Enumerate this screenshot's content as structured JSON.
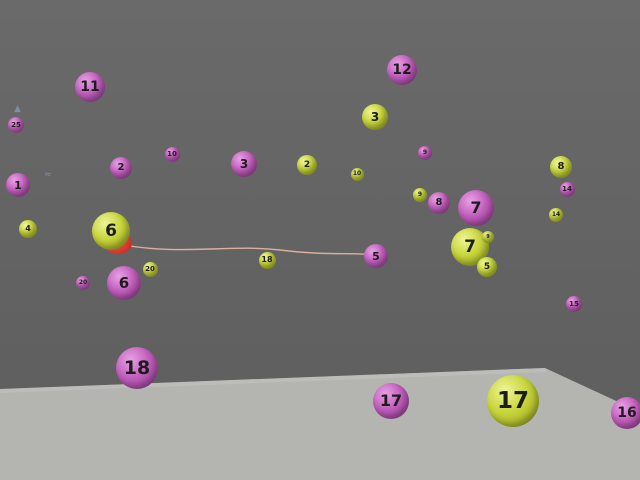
{
  "scene": {
    "colors": {
      "background": "#656565",
      "floor": "#b4b4b0",
      "pink_ball": "#c25fbd",
      "yellow_ball": "#c7d43a",
      "link": "#d9b0a0",
      "red_marker": "#d42a22"
    },
    "link": {
      "from_ball": "6",
      "to_ball": "5"
    },
    "balls": [
      {
        "label": "11",
        "color": "pink"
      },
      {
        "label": "12",
        "color": "pink"
      },
      {
        "label": "3",
        "color": "yellow"
      },
      {
        "label": "25",
        "color": "pink"
      },
      {
        "label": "1",
        "color": "pink"
      },
      {
        "label": "2",
        "color": "pink"
      },
      {
        "label": "10",
        "color": "pink"
      },
      {
        "label": "3",
        "color": "pink"
      },
      {
        "label": "2",
        "color": "yellow"
      },
      {
        "label": "10",
        "color": "yellow"
      },
      {
        "label": "9",
        "color": "pink"
      },
      {
        "label": "8",
        "color": "yellow"
      },
      {
        "label": "14",
        "color": "pink"
      },
      {
        "label": "4",
        "color": "yellow"
      },
      {
        "label": "6",
        "color": "yellow"
      },
      {
        "label": "9",
        "color": "yellow"
      },
      {
        "label": "8",
        "color": "pink"
      },
      {
        "label": "7",
        "color": "pink"
      },
      {
        "label": "14",
        "color": "yellow"
      },
      {
        "label": "7",
        "color": "yellow"
      },
      {
        "label": "9",
        "color": "yellow"
      },
      {
        "label": "5",
        "color": "yellow"
      },
      {
        "label": "20",
        "color": "yellow"
      },
      {
        "label": "20",
        "color": "pink"
      },
      {
        "label": "6",
        "color": "pink"
      },
      {
        "label": "18",
        "color": "yellow"
      },
      {
        "label": "5",
        "color": "pink"
      },
      {
        "label": "15",
        "color": "pink"
      },
      {
        "label": "18",
        "color": "pink"
      },
      {
        "label": "17",
        "color": "pink"
      },
      {
        "label": "17",
        "color": "yellow"
      },
      {
        "label": "16",
        "color": "pink"
      }
    ]
  }
}
